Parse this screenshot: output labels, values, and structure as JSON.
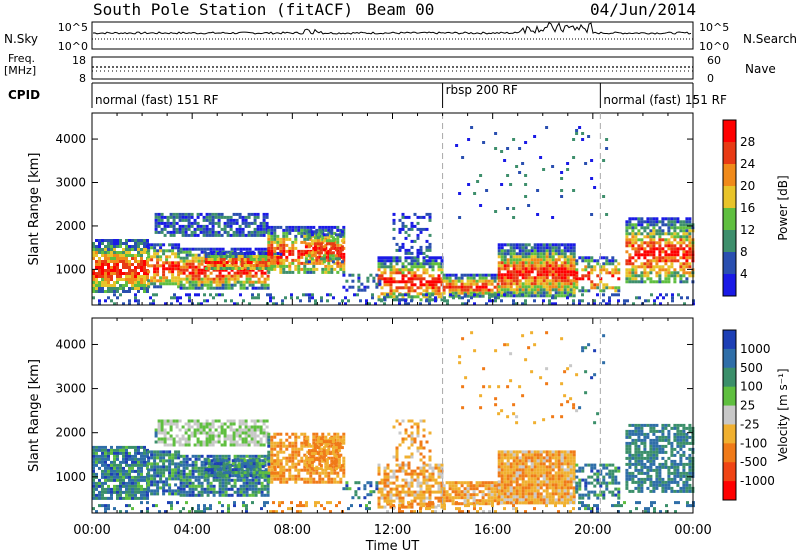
{
  "header": {
    "station": "South Pole Station (fitACF)",
    "beam": "Beam 00",
    "date": "04/Jun/2014"
  },
  "side_labels": {
    "nsky": "N.Sky",
    "nsearch": "N.Search",
    "freq_line1": "Freq.",
    "freq_line2": "[MHz]",
    "nave": "Nave",
    "cpid": "CPID"
  },
  "noise_panel": {
    "left_ticks": [
      "10^5",
      "10^0"
    ],
    "right_ticks": [
      "10^5",
      "10^0"
    ]
  },
  "freq_panel": {
    "left_ticks": [
      "18",
      "8"
    ],
    "right_ticks": [
      "60",
      "0"
    ]
  },
  "cpid_segments": [
    {
      "label": "normal (fast) 151 RF",
      "start_hour": 0,
      "end_hour": 14.0
    },
    {
      "label": "rbsp 200 RF",
      "start_hour": 14.0,
      "end_hour": 20.3
    },
    {
      "label": "normal (fast) 151 RF",
      "start_hour": 20.3,
      "end_hour": 24
    }
  ],
  "chart_data": [
    {
      "type": "heatmap",
      "panel": "power",
      "ylabel": "Slant Range [km]",
      "xlabel": "",
      "xlim": [
        0,
        24
      ],
      "ylim": [
        180,
        4600
      ],
      "yticks": [
        "1000",
        "2000",
        "3000",
        "4000"
      ],
      "colorbar": {
        "label": "Power [dB]",
        "ticks": [
          "4",
          "8",
          "12",
          "16",
          "20",
          "24",
          "28"
        ],
        "colors": [
          "#1a1ae6",
          "#2a4fb0",
          "#3e8f6c",
          "#5fbf3f",
          "#e8c42a",
          "#f08a1a",
          "#e83a14",
          "#ff0000"
        ]
      },
      "dividers_hour": [
        14.0,
        20.3
      ]
    },
    {
      "type": "heatmap",
      "panel": "velocity",
      "ylabel": "Slant Range [km]",
      "xlabel": "Time UT",
      "xlim": [
        0,
        24
      ],
      "ylim": [
        180,
        4600
      ],
      "yticks": [
        "1000",
        "2000",
        "3000",
        "4000"
      ],
      "xticks": [
        "00:00",
        "04:00",
        "08:00",
        "12:00",
        "16:00",
        "20:00",
        "00:00"
      ],
      "colorbar": {
        "label": "Velocity [m s⁻¹]",
        "ticks": [
          "1000",
          "500",
          "100",
          "25",
          "-25",
          "-100",
          "-500",
          "-1000"
        ],
        "colors": [
          "#1d3fb5",
          "#2f6ea8",
          "#3b8f6a",
          "#5fbf3f",
          "#c8c8c8",
          "#f0b030",
          "#f07a18",
          "#f04414",
          "#ff0000"
        ]
      },
      "dividers_hour": [
        14.0,
        20.3
      ]
    }
  ]
}
